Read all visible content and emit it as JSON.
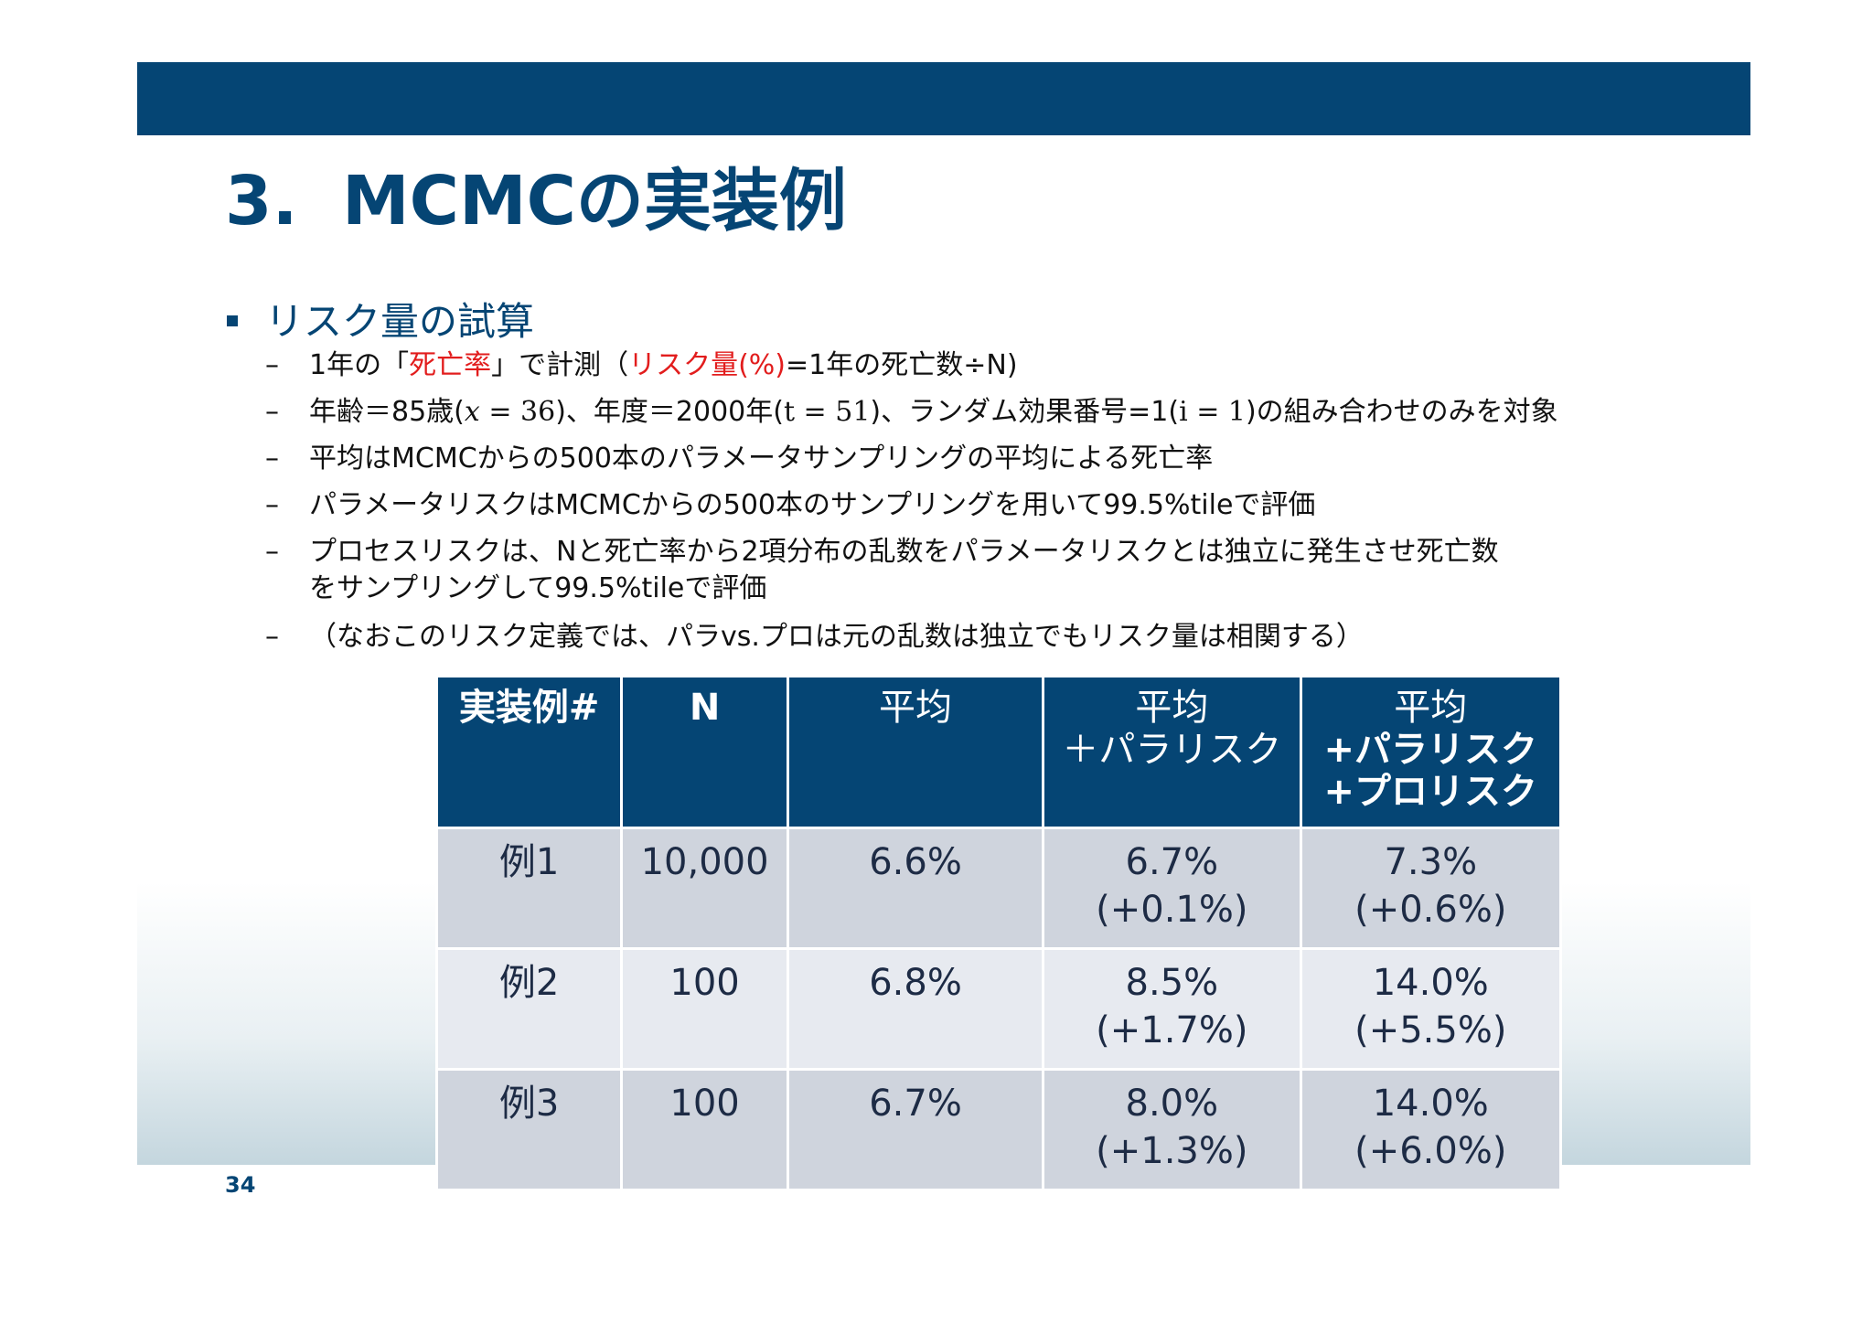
{
  "slide": {
    "title_num": "3.",
    "title_text": "MCMCの実装例",
    "page_number": "34",
    "colors": {
      "primary": "#054574",
      "accent_red": "#e21d1d"
    }
  },
  "bullet": "リスク量の試算",
  "subitems": {
    "s1": {
      "p1": "1年の「",
      "r1": "死亡率",
      "p2": "」で計測（",
      "r2": "リスク量(%)",
      "p3": "=1年の死亡数÷N)"
    },
    "s2": {
      "p1": "年齢＝85歳(",
      "m1": "𝑥 = 36",
      "p2": ")、年度＝2000年(",
      "m2": "t = 51",
      "p3": ")、ランダム効果番号=1(",
      "m3": "i = 1",
      "p4": ")の組み合わせのみを対象"
    },
    "s3": "平均はMCMCからの500本のパラメータサンプリングの平均による死亡率",
    "s4": "パラメータリスクはMCMCからの500本のサンプリングを用いて99.5%tileで評価",
    "s5_line1": "プロセスリスクは、Nと死亡率から2項分布の乱数をパラメータリスクとは独立に発生させ死亡数",
    "s5_line2": "をサンプリングして99.5%tileで評価",
    "s6": "（なおこのリスク定義では、パラvs.プロは元の乱数は独立でもリスク量は相関する）",
    "dash": "–"
  },
  "table": {
    "headers": {
      "h1": "実装例#",
      "h2": "N",
      "h3": "平均",
      "h4_l1": "平均",
      "h4_l2": "＋パラリスク",
      "h5_l1": "平均",
      "h5_l2": "+パラリスク",
      "h5_l3": "+プロリスク"
    },
    "rows": [
      {
        "ex": "例1",
        "n": "10,000",
        "mean": "6.6%",
        "para": "6.7%",
        "para_diff": "(+0.1%)",
        "total": "7.3%",
        "total_diff": "(+0.6%)"
      },
      {
        "ex": "例2",
        "n": "100",
        "mean": "6.8%",
        "para": "8.5%",
        "para_diff": "(+1.7%)",
        "total": "14.0%",
        "total_diff": "(+5.5%)"
      },
      {
        "ex": "例3",
        "n": "100",
        "mean": "6.7%",
        "para": "8.0%",
        "para_diff": "(+1.3%)",
        "total": "14.0%",
        "total_diff": "(+6.0%)"
      }
    ]
  }
}
